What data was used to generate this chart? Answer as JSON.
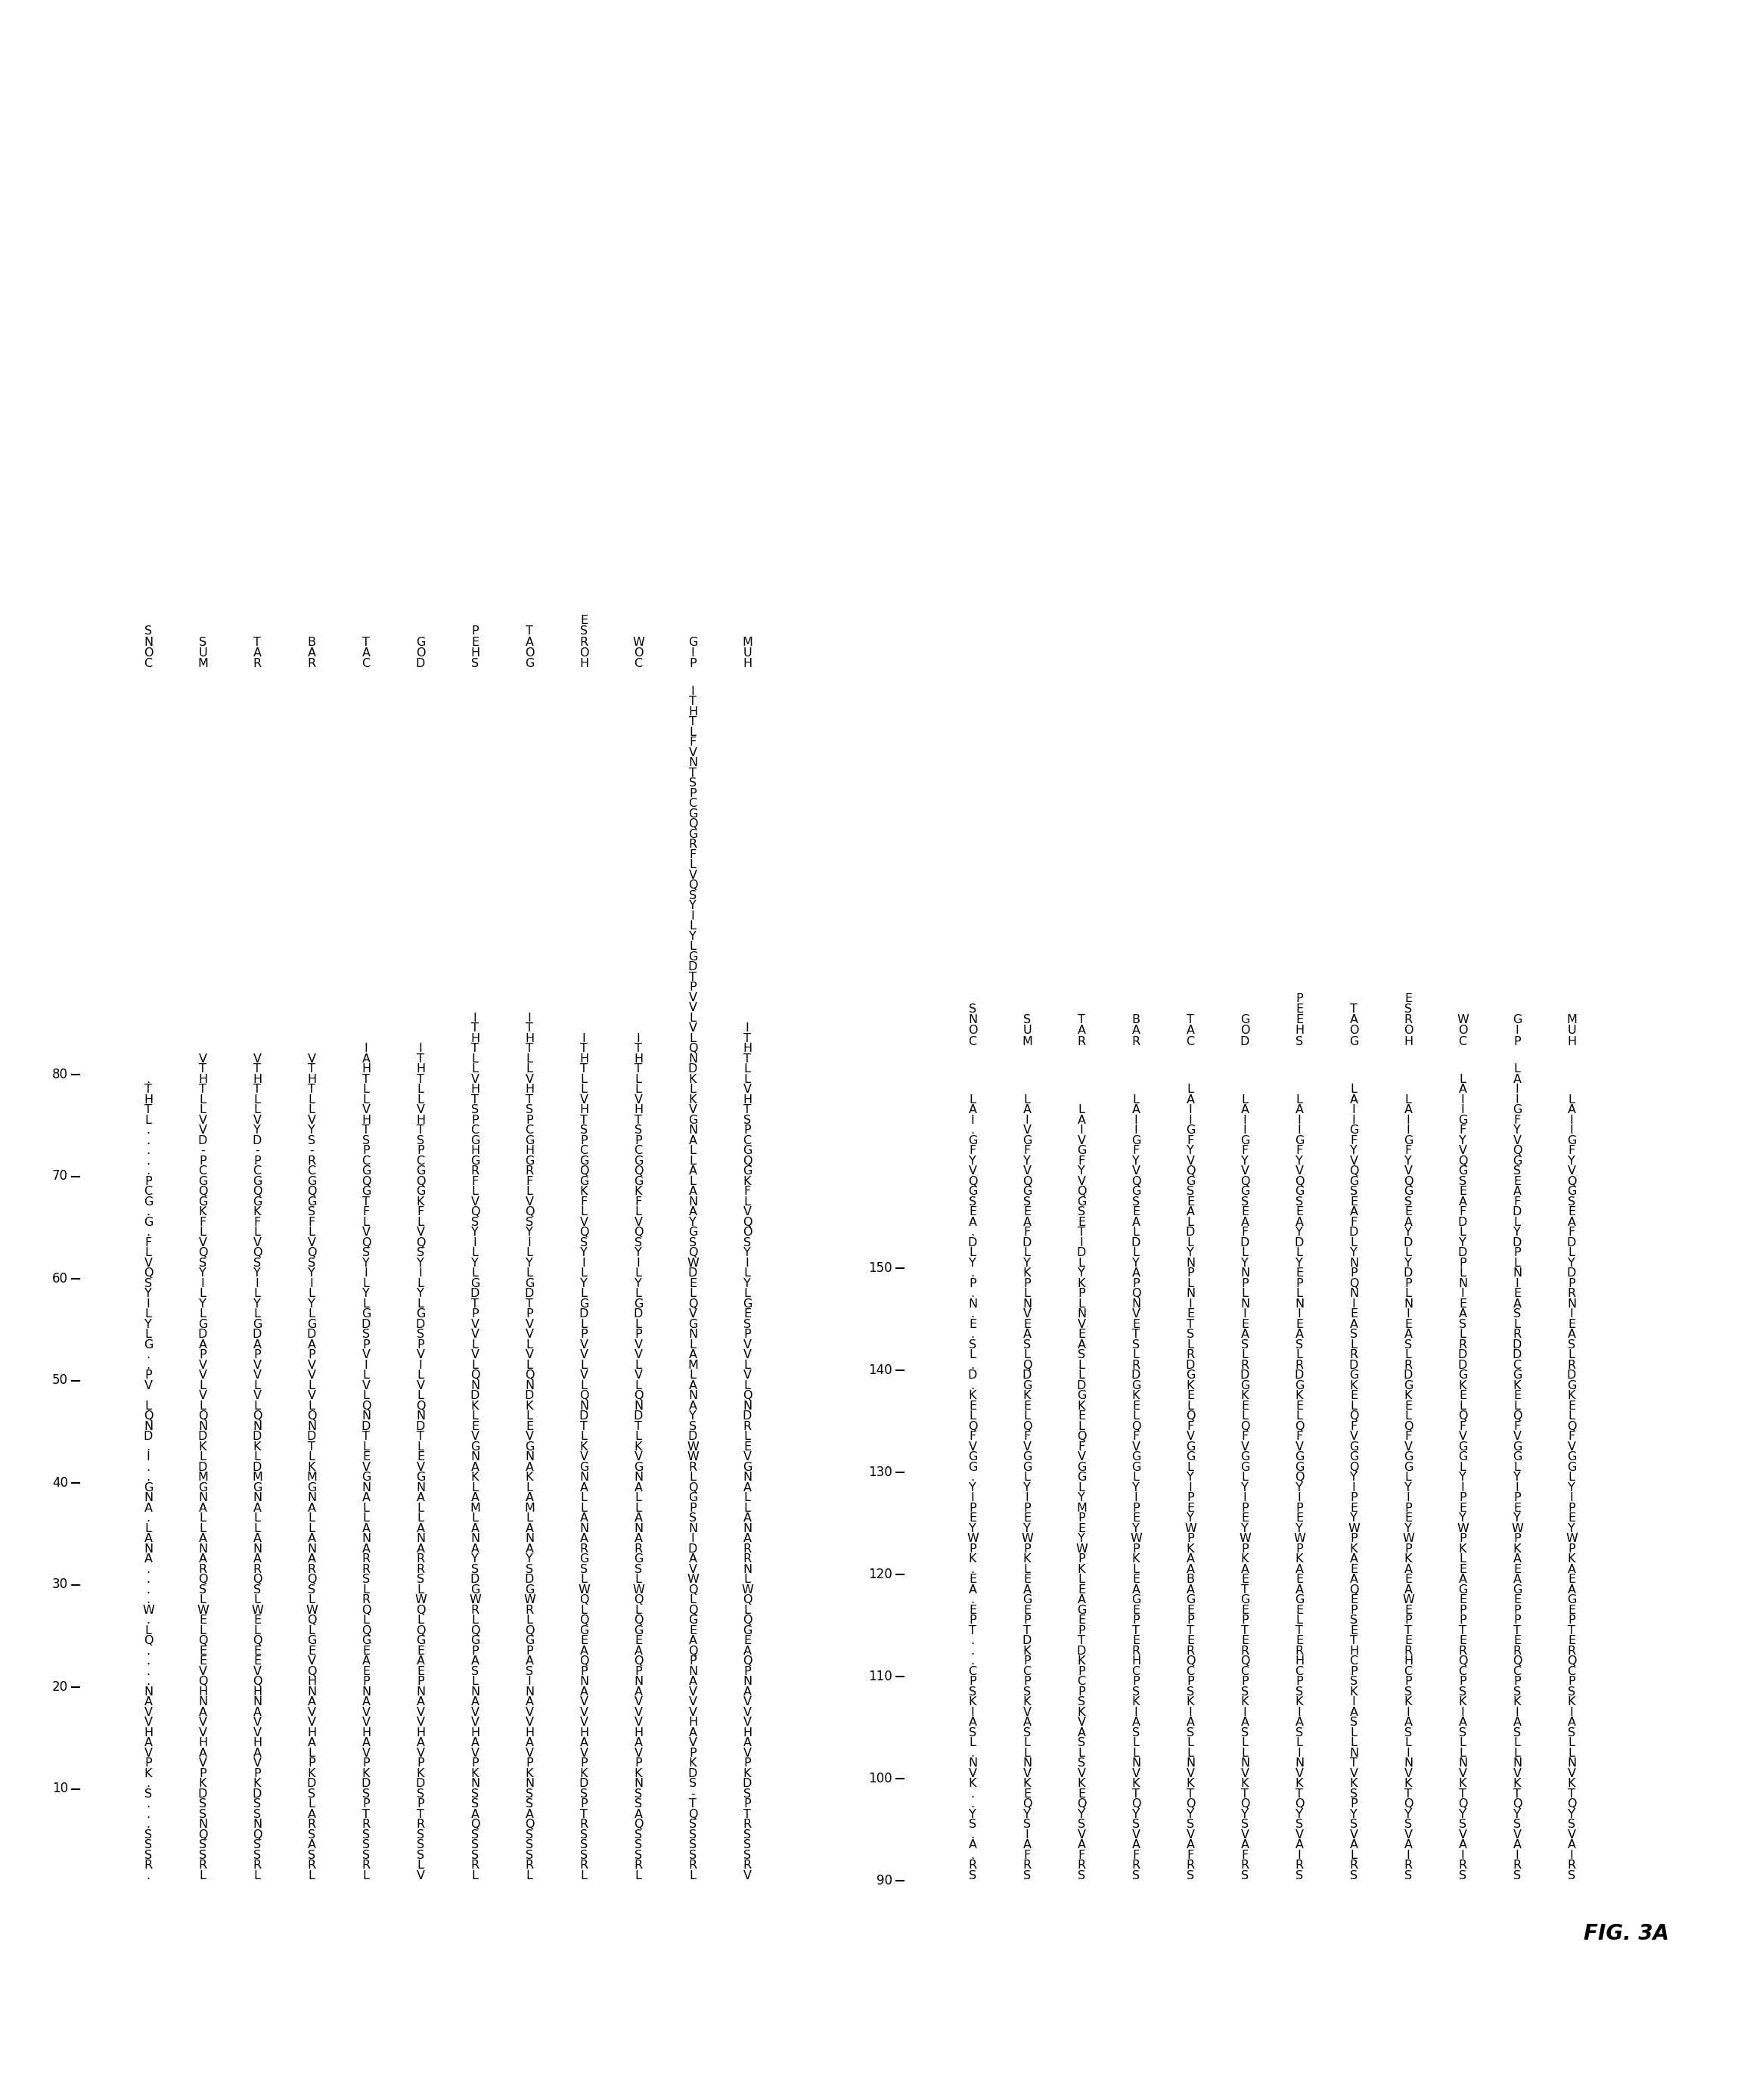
{
  "fig_label": "FIG. 3A",
  "block1": {
    "tick_labels": [
      "10",
      "20",
      "30",
      "40",
      "50",
      "60",
      "70",
      "80"
    ],
    "species_labels": [
      "CONS",
      "MUS",
      "RAT",
      "RAB",
      "CAT",
      "DOG",
      "SHEP",
      "GOAT",
      "HORSE",
      "COW",
      "PIG",
      "HUM"
    ],
    "sequences": [
      ".RSSS...S.KPVAHVVAN....QL.W....ANAL.ANG..I.DNQL VP..GLYLIYSQVLF.G.GCP.....LTHT.",
      "LRSSQNSSDKPVAHVVANHQVEEQLEWLSQRANALLANGMDLKDNQLVLVVPADGLYLIYSQVLFKGQGCP-DVVLLTHTV",
      "LRSSQNSSDKPVAHVVANHQVEEQLEWLSQRANALLANGMDLKDNQLVLVVPADGLYLIYSQVLFKGQGCP-DYVLLTHTV",
      "LRSASRALSDKPLAHVVANHQVEGLQWLSQRANALLANGMKLTDNQLVLVVPADGLYLIYSQVLFSGQGCR-SYVLLTHTV",
      "LRSSSRTPSDKPVAHVVANPEAEGQLQRLSRRANALLANGVELTDNQLVLIVPSDGLYLIYSQVLFTGQGCPSTHVLLTHAI",
      "VLSSSRTPSDKPVAHVVANPEAEGQLQWLSRRANALLANGVELTDNQLVLIVPSDGLYLIYSQVLFKGQGCPSTHVLLTHTI",
      "LRSSSQASSNKPVAHVVANLSAPGQLRWGDSYANALMALKANGVELKDNQLVLVVPTDGLYLIYSQVLFRGHGCPSTHVLLTHTI",
      "LRSSSQASSNKPVAHVVANISAPGQLRWGDSYANALMALKANGVELKDNQLVLVVPTDGLYLIYSQVLFRGHGCPSTHVLLTHTI",
      "LRSSSRTPSDKPVAHVVVANPQAEGQLQWLSGRANALLANGVKLTDNQLVLVVPLDGLYLIYSQVLFKGQGCPSTHVLLTHTI",
      "LRSSSQASSNKPVAHVVVANPQAEGQLQWLSGRANALLANGVKLTDNQLVLVVPLDGLYLIYSQVLFKGQGCPSTHVLLTHTI",
      "LRSSSSQT-SDKPVAHVVVANPQAEGQLQWVADINSPGQLRWWDSYANALMALNGVQLEDWQSGYANALALLANGVKLKDNQLVLVVPTDGLYLIYSQVLFRGQGCPSTNVFLTHTI",
      "VRSSSRTPSDKPVAHVVVANPQAEGQLQWLNRRANALLANGVELRDNQLVLVVPSEGLYLIYSOQVLFKGQGCPSTHVLLTHTI"
    ]
  },
  "block2": {
    "tick_labels": [
      "90",
      "100",
      "110",
      "120",
      "130",
      "140",
      "150"
    ],
    "species_labels": [
      "CONS",
      "MUS",
      "RAT",
      "RAB",
      "CAT",
      "DOG",
      "SHEEP",
      "GOAT",
      "HORSE",
      "COW",
      "PIG",
      "HUM"
    ],
    "sequences": [
      "SR.A.SY..KVN.LSAIKSPC...TPE.AE.KPWYEPIY.GGVFQLEK.D.LS.E.N.P.YLD.AESGQVYFG.IAL",
      "SRFAISYQEKVNLLSAVKSPCPKDTPEGAELKPWYEPIYLGGVFQLEKGDQLSAEVNLPKYLDFAESGQVYFGVIAL",
      "SRFAVSYQEKVSLSAVKSPCPKDTPEGAELKPWYEPMYLGGVFQLEKGDLLSAEVNLPKYLDITESGQVYFGVIAL",
      "SRFAVSYQTKVNLLSAIKSPCHRETPEGAELKPWYEPIYLGGVFQLEKGDRLSTEVNQPAYLDLAESGQVYFGIIAL",
      "SRFAVSYQTKVNLLSAIKSPCQRETPEGABAAKPWYEPIYLGGVFQLEKGDRLSTEINLPNYLDLAESGQVYFGIIAL",
      "SRFAVSYQTKVNLLSAIKSPCQRETPEGTEAKPWYEPIYLGGVFQLEKGDRLSAEINLPNYLDFAESGQVYFGIIAL",
      "SRIAVSYQTKVNILSAIKSPCHRETLEGAEAKPWYEPIYQGGVFQLEKGDRLSAEINLPEYLDYAESGQVYFGIIAL",
      "SRLAVSYPSKVTNLLSAIKSPCHTESPEQAEAKPWYEPIYQGGVFQLEKGDRLSAEINQPNYLDFAESGQVYFGIIAL",
      "SRIAVSYQTKVNILSAIKSPCHRETPEWAEAKPWYEPIYLGGVFQLEKGDRLSAEINLPDYLDYAESGQVYFGIIAL",
      "SRIAVSYQTKVNLLSAIKSPCQRETPPEGAELKPWYEPIYLGGVFQLEKGDDRLSAEINLPDYLDFAESGQVYFGIIAL",
      "SRIAVSYQTKVNLLSAIKSPCQRETPPEGAEAKPWYEPIYLGGVFQLEKGCDDRLSAEINLPDYLDFAESGQVYFGIIAL",
      "SRIAVSYQTKVNLLSAIKSPCQRETPEGAEAKPWYEPIYLGGVFQLEKGDRLSAEINRPDYLDFAESGQVYFGIIAL"
    ]
  }
}
